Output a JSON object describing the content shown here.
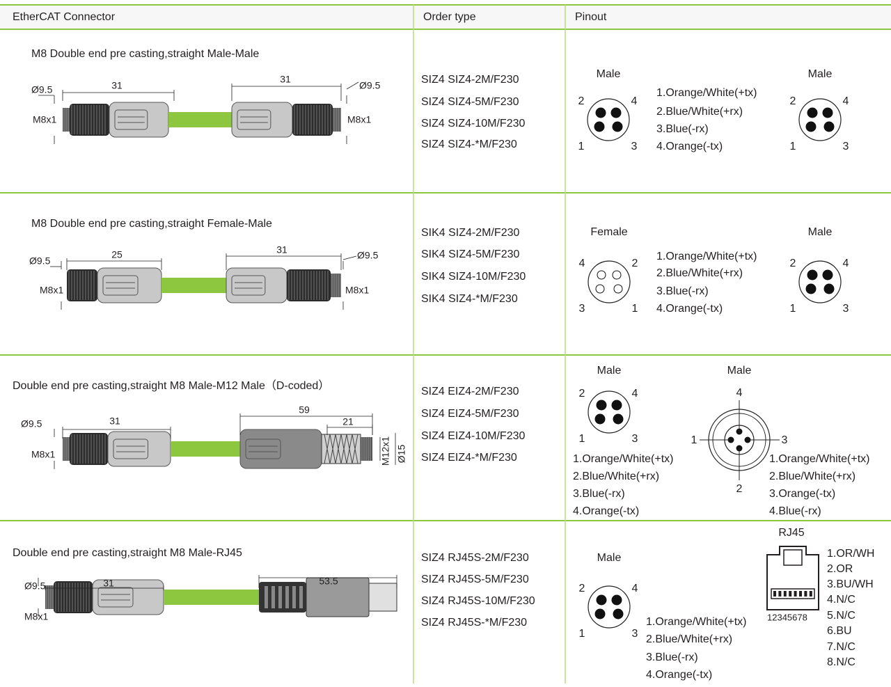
{
  "table": {
    "headers": [
      "EtherCAT Connector",
      "Order type",
      "Pinout"
    ],
    "rows": [
      {
        "title": "M8 Double end pre casting,straight Male-Male",
        "dimensions": [
          "Ø9.5",
          "31",
          "M8x1",
          "31",
          "Ø9.5",
          "M8x1"
        ],
        "order_types": [
          "SIZ4 SIZ4-2M/F230",
          "SIZ4 SIZ4-5M/F230",
          "SIZ4 SIZ4-10M/F230",
          "SIZ4 SIZ4-*M/F230"
        ],
        "pinout": {
          "left": {
            "label": "Male",
            "pins": [
              "2",
              "4",
              "1",
              "3"
            ]
          },
          "wiring": [
            "1.Orange/White(+tx)",
            "2.Blue/White(+rx)",
            "3.Blue(-rx)",
            "4.Orange(-tx)"
          ],
          "right": {
            "label": "Male",
            "pins": [
              "2",
              "4",
              "1",
              "3"
            ]
          }
        }
      },
      {
        "title": "M8 Double end pre casting,straight Female-Male",
        "dimensions": [
          "Ø9.5",
          "25",
          "M8x1",
          "31",
          "Ø9.5",
          "M8x1"
        ],
        "order_types": [
          "SIK4 SIZ4-2M/F230",
          "SIK4 SIZ4-5M/F230",
          "SIK4 SIZ4-10M/F230",
          "SIK4 SIZ4-*M/F230"
        ],
        "pinout": {
          "left": {
            "label": "Female",
            "pins": [
              "4",
              "2",
              "3",
              "1"
            ]
          },
          "wiring": [
            "1.Orange/White(+tx)",
            "2.Blue/White(+rx)",
            "3.Blue(-rx)",
            "4.Orange(-tx)"
          ],
          "right": {
            "label": "Male",
            "pins": [
              "2",
              "4",
              "1",
              "3"
            ]
          }
        }
      },
      {
        "title": "Double end pre casting,straight M8 Male-M12 Male（D-coded）",
        "dimensions": [
          "Ø9.5",
          "31",
          "M8x1",
          "59",
          "21",
          "M12x1",
          "Ø15"
        ],
        "order_types": [
          "SIZ4 EIZ4-2M/F230",
          "SIZ4 EIZ4-5M/F230",
          "SIZ4 EIZ4-10M/F230",
          "SIZ4 EIZ4-*M/F230"
        ],
        "pinout": {
          "left": {
            "label": "Male",
            "pins": [
              "2",
              "4",
              "1",
              "3"
            ]
          },
          "wiring": [
            "1.Orange/White(+tx)",
            "2.Blue/White(+rx)",
            "3.Blue(-rx)",
            "4.Orange(-tx)"
          ],
          "right": {
            "label": "Male",
            "pins": [
              "4",
              "1",
              "3",
              "2"
            ]
          },
          "right_wiring": [
            "1.Orange/White(+tx)",
            "2.Blue/White(+rx)",
            "3.Orange(-tx)",
            "4.Blue(-rx)"
          ]
        }
      },
      {
        "title": "Double end pre casting,straight M8 Male-RJ45",
        "dimensions": [
          "Ø9.5",
          "31",
          "M8x1",
          "53.5"
        ],
        "order_types": [
          "SIZ4 RJ45S-2M/F230",
          "SIZ4 RJ45S-5M/F230",
          "SIZ4 RJ45S-10M/F230",
          "SIZ4 RJ45S-*M/F230"
        ],
        "pinout": {
          "left": {
            "label": "Male",
            "pins": [
              "2",
              "4",
              "1",
              "3"
            ]
          },
          "wiring": [
            "1.Orange/White(+tx)",
            "2.Blue/White(+rx)",
            "3.Blue(-rx)",
            "4.Orange(-tx)"
          ],
          "right": {
            "label": "RJ45",
            "pin_numbers": "12345678",
            "assignment": [
              "1.OR/WH",
              "2.OR",
              "3.BU/WH",
              "4.N/C",
              "5.N/C",
              "6.BU",
              "7.N/C",
              "8.N/C"
            ]
          }
        }
      }
    ]
  }
}
